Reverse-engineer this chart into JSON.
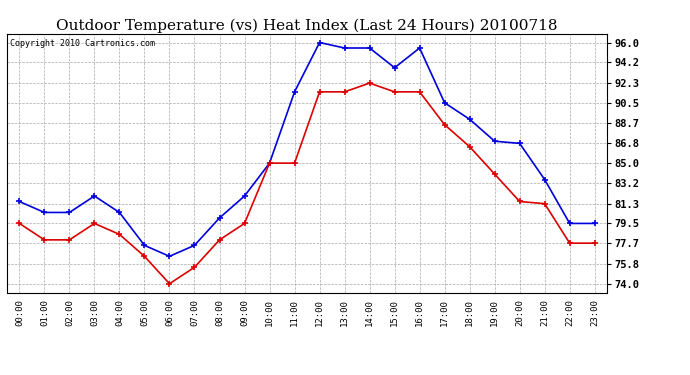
{
  "title": "Outdoor Temperature (vs) Heat Index (Last 24 Hours) 20100718",
  "copyright": "Copyright 2010 Cartronics.com",
  "x_labels": [
    "00:00",
    "01:00",
    "02:00",
    "03:00",
    "04:00",
    "05:00",
    "06:00",
    "07:00",
    "08:00",
    "09:00",
    "10:00",
    "11:00",
    "12:00",
    "13:00",
    "14:00",
    "15:00",
    "16:00",
    "17:00",
    "18:00",
    "19:00",
    "20:00",
    "21:00",
    "22:00",
    "23:00"
  ],
  "blue_temp": [
    81.5,
    80.5,
    80.5,
    82.0,
    80.5,
    77.5,
    76.5,
    77.5,
    80.0,
    82.0,
    85.0,
    91.5,
    96.0,
    95.5,
    95.5,
    93.7,
    95.5,
    90.5,
    89.0,
    87.0,
    86.8,
    83.5,
    79.5,
    79.5
  ],
  "red_heat": [
    79.5,
    78.0,
    78.0,
    79.5,
    78.5,
    76.5,
    74.0,
    75.5,
    78.0,
    79.5,
    85.0,
    85.0,
    91.5,
    91.5,
    92.3,
    91.5,
    91.5,
    88.5,
    86.5,
    84.0,
    81.5,
    81.3,
    77.7,
    77.7
  ],
  "blue_color": "#0000dd",
  "red_color": "#dd0000",
  "bg_color": "#ffffff",
  "grid_color": "#aaaaaa",
  "yticks": [
    74.0,
    75.8,
    77.7,
    79.5,
    81.3,
    83.2,
    85.0,
    86.8,
    88.7,
    90.5,
    92.3,
    94.2,
    96.0
  ],
  "ylim": [
    73.2,
    96.8
  ],
  "title_fontsize": 11,
  "copyright_fontsize": 6,
  "tick_fontsize": 7.5,
  "xtick_fontsize": 6.5
}
